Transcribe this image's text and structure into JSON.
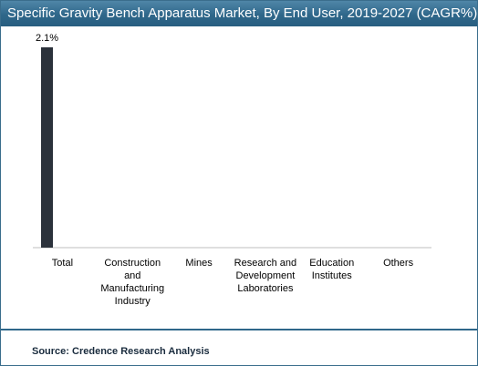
{
  "title": "Specific Gravity Bench Apparatus Market, By End User, 2019-2027 (CAGR%)",
  "source": "Source: Credence Research Analysis",
  "colors": {
    "title_bg": "#2f678a",
    "bar": "#2b323b",
    "axis": "#bfbfbf"
  },
  "chart_data": {
    "type": "bar",
    "categories": [
      [
        "Total"
      ],
      [
        "Construction",
        "and",
        "Manufacturing",
        "Industry"
      ],
      [
        "Mines"
      ],
      [
        "Research and",
        "Development",
        "Laboratories"
      ],
      [
        "Education",
        "Institutes"
      ],
      [
        "Others"
      ]
    ],
    "values": [
      2.1,
      null,
      null,
      null,
      null,
      null
    ],
    "data_labels": [
      "2.1%",
      "",
      "",
      "",
      "",
      ""
    ],
    "ylim": [
      0,
      2.3
    ],
    "grid": false,
    "legend": "none"
  }
}
